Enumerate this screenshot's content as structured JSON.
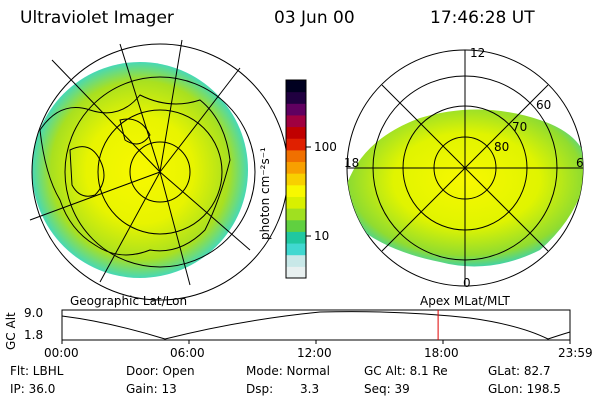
{
  "header": {
    "title": "Ultraviolet Imager",
    "date": "03 Jun 00",
    "time": "17:46:28 UT"
  },
  "colorbar": {
    "unit_label": "photon cm⁻²s⁻¹",
    "tick_high": "100",
    "tick_low": "10",
    "colors": [
      "#e8f0f0",
      "#c8e8e8",
      "#40d8d0",
      "#20c8a0",
      "#60d040",
      "#a0e020",
      "#d8f000",
      "#f8f800",
      "#f8d000",
      "#f8a000",
      "#f07000",
      "#e02000",
      "#c00000",
      "#a00040",
      "#600060",
      "#200040",
      "#000020"
    ]
  },
  "maps": {
    "left_label": "Geographic Lat/Lon",
    "right_label": "Apex MLat/MLT",
    "polar_ticks": {
      "top": "12",
      "left": "18",
      "right": "6",
      "bottom": "0",
      "lat60": "60",
      "lat70": "70",
      "lat80": "80"
    }
  },
  "altitude_plot": {
    "ylabel": "GC Alt",
    "y_max": "9.0",
    "y_min": "1.8",
    "x_ticks": [
      "00:00",
      "06:00",
      "12:00",
      "18:00",
      "23:59"
    ],
    "marker_time_hours": 17.77
  },
  "footer": {
    "flt": "Flt: LBHL",
    "ip": "IP: 36.0",
    "door": "Door: Open",
    "gain": "Gain: 13",
    "mode": "Mode: Normal",
    "dsp_label": "Dsp:",
    "dsp_value": "3.3",
    "gc_alt": "GC Alt: 8.1 Re",
    "seq": "Seq: 39",
    "glat": "GLat: 82.7",
    "glon": "GLon: 198.5"
  }
}
